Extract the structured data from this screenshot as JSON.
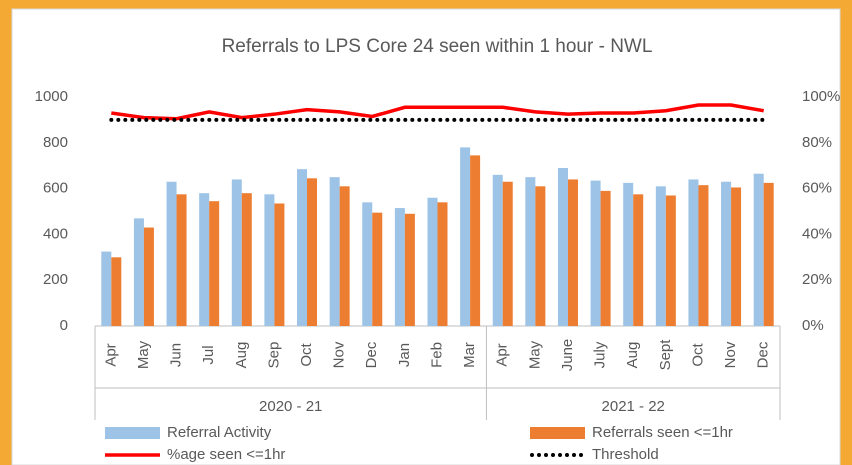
{
  "chart_data": {
    "type": "bar-line",
    "title": "Referrals to LPS Core 24 seen within 1 hour - NWL",
    "category_groups": [
      {
        "name": "2020 - 21",
        "categories": [
          "Apr",
          "May",
          "Jun",
          "Jul",
          "Aug",
          "Sep",
          "Oct",
          "Nov",
          "Dec",
          "Jan",
          "Feb",
          "Mar"
        ]
      },
      {
        "name": "2021 - 22",
        "categories": [
          "Apr",
          "May",
          "June",
          "July",
          "Aug",
          "Sept",
          "Oct",
          "Nov",
          "Dec"
        ]
      }
    ],
    "series": [
      {
        "name": "Referral Activity",
        "type": "bar",
        "color": "#9dc3e6",
        "values": [
          325,
          470,
          630,
          580,
          640,
          575,
          685,
          650,
          540,
          515,
          560,
          780,
          660,
          650,
          690,
          635,
          625,
          610,
          640,
          630,
          665
        ]
      },
      {
        "name": "Referrals seen <=1hr",
        "type": "bar",
        "color": "#ed7d31",
        "values": [
          300,
          430,
          575,
          545,
          580,
          535,
          645,
          610,
          495,
          490,
          540,
          745,
          630,
          610,
          640,
          590,
          575,
          570,
          615,
          605,
          625
        ]
      },
      {
        "name": "%age seen <=1hr",
        "type": "line",
        "axis": "y2",
        "color": "#ff0000",
        "values": [
          93,
          91,
          90.5,
          93.5,
          91,
          92.5,
          94.5,
          93.5,
          91.5,
          95.5,
          95.5,
          95.5,
          95.5,
          93.5,
          92.5,
          93,
          93,
          94,
          96.5,
          96.5,
          94
        ]
      },
      {
        "name": "Threshold",
        "type": "line",
        "axis": "y2",
        "color": "#000000",
        "dash": "dotted",
        "values": [
          90,
          90,
          90,
          90,
          90,
          90,
          90,
          90,
          90,
          90,
          90,
          90,
          90,
          90,
          90,
          90,
          90,
          90,
          90,
          90,
          90
        ]
      }
    ],
    "ylim": [
      0,
      1000
    ],
    "yticks": [
      0,
      200,
      400,
      600,
      800,
      1000
    ],
    "y2lim": [
      0,
      100
    ],
    "y2ticks": [
      {
        "value": 0,
        "label": "0%"
      },
      {
        "value": 20,
        "label": "20%"
      },
      {
        "value": 40,
        "label": "40%"
      },
      {
        "value": 60,
        "label": "60%"
      },
      {
        "value": 80,
        "label": "80%"
      },
      {
        "value": 100,
        "label": "100%"
      }
    ],
    "grid": false,
    "legend": "bottom"
  }
}
